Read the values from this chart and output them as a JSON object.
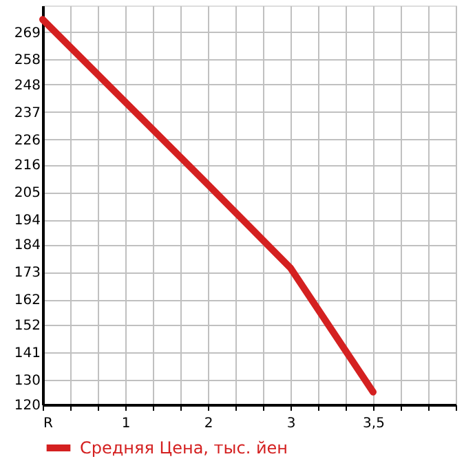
{
  "chart_data": {
    "type": "line",
    "categories": [
      "R",
      "1",
      "2",
      "3",
      "3,5"
    ],
    "series": [
      {
        "name": "Средняя Цена, тыс. йен",
        "color": "#d42020",
        "values": [
          274,
          241,
          208,
          174.6,
          125
        ]
      }
    ],
    "ylim": [
      120,
      279.6
    ],
    "yticks": [
      120,
      130,
      141,
      152,
      162,
      173,
      184,
      194,
      205,
      216,
      226,
      237,
      248,
      258,
      269
    ],
    "grid": true,
    "legend": "bottom left",
    "marker": "none",
    "line_style": "solid"
  }
}
